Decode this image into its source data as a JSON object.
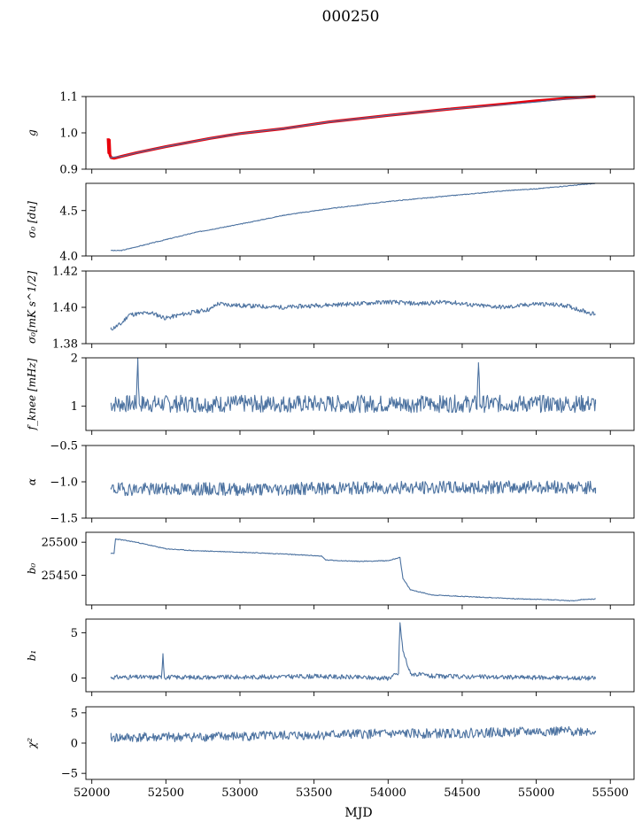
{
  "chart_data": {
    "type": "line",
    "suptitle": "000250",
    "xlabel": "MJD",
    "xlim": [
      51960,
      55660
    ],
    "xticks": [
      52000,
      52500,
      53000,
      53500,
      54000,
      54500,
      55000,
      55500
    ],
    "series_color": "#4c72a0",
    "panels": [
      {
        "id": "g",
        "ylabel": "g",
        "ylim": [
          0.9,
          1.1
        ],
        "yticks": [
          "0.9",
          "1.0",
          "1.1"
        ],
        "series": [
          {
            "name": "g",
            "style": "band",
            "color": "#e8000b",
            "x": [
              52110,
              52115,
              52118,
              52122,
              52126,
              52130,
              52150,
              52200,
              52300,
              52500,
              52800,
              53000,
              53300,
              53600,
              54000,
              54400,
              54800,
              55000,
              55200,
              55400
            ],
            "values": [
              0.985,
              0.945,
              0.98,
              0.94,
              0.935,
              0.932,
              0.93,
              0.935,
              0.945,
              0.962,
              0.985,
              0.998,
              1.012,
              1.03,
              1.048,
              1.065,
              1.08,
              1.088,
              1.095,
              1.1
            ]
          },
          {
            "name": "g-smooth",
            "style": "line",
            "color": "#4c72a0",
            "x": [
              52120,
              52200,
              52300,
              52500,
              52800,
              53000,
              53300,
              53600,
              54000,
              54400,
              54800,
              55000,
              55200,
              55400
            ],
            "values": [
              0.932,
              0.935,
              0.945,
              0.962,
              0.985,
              0.998,
              1.012,
              1.03,
              1.048,
              1.065,
              1.078,
              1.085,
              1.093,
              1.1
            ]
          }
        ]
      },
      {
        "id": "sigma0-du",
        "ylabel": "σ₀ [du]",
        "ylim": [
          4.0,
          4.8
        ],
        "yticks": [
          "4.0",
          "4.5"
        ],
        "series": [
          {
            "name": "sigma0_du",
            "style": "line",
            "color": "#4c72a0",
            "noise": 0.004,
            "seed": 3,
            "x": [
              52130,
              52200,
              52300,
              52500,
              52700,
              53000,
              53300,
              53600,
              54000,
              54400,
              54800,
              55000,
              55200,
              55400
            ],
            "values": [
              4.06,
              4.06,
              4.1,
              4.18,
              4.26,
              4.35,
              4.45,
              4.52,
              4.6,
              4.66,
              4.72,
              4.74,
              4.77,
              4.8
            ]
          }
        ]
      },
      {
        "id": "sigma0-mk",
        "ylabel": "σ₀[mK s^1/2]",
        "ylim": [
          1.38,
          1.42
        ],
        "yticks": [
          "1.38",
          "1.40",
          "1.42"
        ],
        "series": [
          {
            "name": "sigma0_mK",
            "style": "line",
            "color": "#4c72a0",
            "noise": 0.0012,
            "seed": 11,
            "x": [
              52130,
              52200,
              52250,
              52400,
              52500,
              52600,
              52800,
              52850,
              53000,
              53300,
              53500,
              53800,
              54000,
              54200,
              54400,
              54600,
              54800,
              55000,
              55200,
              55400
            ],
            "values": [
              1.388,
              1.391,
              1.396,
              1.397,
              1.394,
              1.396,
              1.399,
              1.402,
              1.401,
              1.4,
              1.401,
              1.402,
              1.403,
              1.402,
              1.403,
              1.401,
              1.4,
              1.402,
              1.401,
              1.396
            ]
          }
        ]
      },
      {
        "id": "fknee",
        "ylabel": "f_knee [mHz]",
        "ylim": [
          0.5,
          2.0
        ],
        "yticks": [
          "1",
          "2"
        ],
        "ytick_values": [
          1,
          2
        ],
        "series": [
          {
            "name": "fknee",
            "style": "line",
            "color": "#4c72a0",
            "noise": 0.18,
            "seed": 7,
            "x": [
              52130,
              52300,
              52310,
              52320,
              52600,
              53000,
              53400,
              53800,
              54200,
              54500,
              54600,
              54610,
              54620,
              54800,
              55000,
              55400
            ],
            "values": [
              1.05,
              1.05,
              2.0,
              1.05,
              1.05,
              1.05,
              1.05,
              1.05,
              1.05,
              1.05,
              1.05,
              1.9,
              1.05,
              1.05,
              1.05,
              1.05
            ]
          }
        ]
      },
      {
        "id": "alpha",
        "ylabel": "α",
        "ylim": [
          -1.5,
          -0.5
        ],
        "yticks": [
          "−1.5",
          "−1.0",
          "−0.5"
        ],
        "ytick_values": [
          -1.5,
          -1.0,
          -0.5
        ],
        "series": [
          {
            "name": "alpha",
            "style": "line",
            "color": "#4c72a0",
            "noise": 0.09,
            "seed": 19,
            "x": [
              52130,
              52700,
              53300,
              53900,
              54500,
              55000,
              55400
            ],
            "values": [
              -1.1,
              -1.1,
              -1.1,
              -1.08,
              -1.08,
              -1.07,
              -1.08
            ]
          }
        ]
      },
      {
        "id": "b0",
        "ylabel": "b₀",
        "ylim": [
          25405,
          25515
        ],
        "yticks": [
          "25450",
          "25500"
        ],
        "ytick_values": [
          25450,
          25500
        ],
        "series": [
          {
            "name": "b0",
            "style": "line",
            "color": "#4c72a0",
            "noise": 0.6,
            "seed": 23,
            "x": [
              52130,
              52150,
              52160,
              52300,
              52400,
              52500,
              52700,
              53000,
              53300,
              53550,
              53580,
              53800,
              54000,
              54080,
              54100,
              54150,
              54300,
              54600,
              54900,
              55100,
              55250,
              55300,
              55400
            ],
            "values": [
              25483,
              25483,
              25505,
              25500,
              25495,
              25490,
              25487,
              25485,
              25482,
              25479,
              25473,
              25471,
              25472,
              25477,
              25445,
              25428,
              25420,
              25417,
              25414,
              25413,
              25411,
              25413,
              25414
            ]
          }
        ]
      },
      {
        "id": "b1",
        "ylabel": "b₁",
        "ylim": [
          -1.5,
          6.5
        ],
        "yticks": [
          "0",
          "5"
        ],
        "ytick_values": [
          0,
          5
        ],
        "series": [
          {
            "name": "b1",
            "style": "line",
            "color": "#4c72a0",
            "noise": 0.25,
            "seed": 31,
            "x": [
              52130,
              52470,
              52480,
              52490,
              53000,
              53500,
              54000,
              54070,
              54080,
              54100,
              54150,
              54300,
              54800,
              55400
            ],
            "values": [
              0.1,
              0.1,
              2.7,
              0.1,
              0.1,
              0.2,
              0.0,
              0.5,
              6.1,
              3.0,
              0.5,
              0.2,
              0.1,
              0.0
            ]
          }
        ]
      },
      {
        "id": "chi2",
        "ylabel": "χ²",
        "ylim": [
          -6,
          6
        ],
        "yticks": [
          "−5",
          "0",
          "5"
        ],
        "ytick_values": [
          -5,
          0,
          5
        ],
        "series": [
          {
            "name": "chi2",
            "style": "line",
            "color": "#4c72a0",
            "noise": 0.8,
            "seed": 41,
            "x": [
              52130,
              52600,
              53200,
              53800,
              54400,
              55000,
              55400
            ],
            "values": [
              0.9,
              1.0,
              1.2,
              1.5,
              1.6,
              1.9,
              2.0
            ]
          }
        ]
      }
    ]
  }
}
